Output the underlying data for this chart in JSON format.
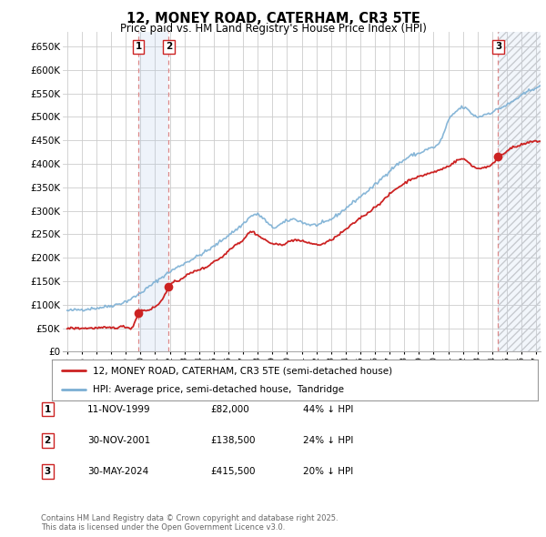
{
  "title": "12, MONEY ROAD, CATERHAM, CR3 5TE",
  "subtitle": "Price paid vs. HM Land Registry's House Price Index (HPI)",
  "ylim": [
    0,
    680000
  ],
  "yticks": [
    0,
    50000,
    100000,
    150000,
    200000,
    250000,
    300000,
    350000,
    400000,
    450000,
    500000,
    550000,
    600000,
    650000
  ],
  "xlim_start": 1994.7,
  "xlim_end": 2027.3,
  "hpi_color": "#7bafd4",
  "price_color": "#cc2222",
  "vline_color": "#dd8888",
  "marker_fill": "#cc2222",
  "transactions": [
    {
      "num": 1,
      "date_dec": 1999.87,
      "price": 82000,
      "label": "1"
    },
    {
      "num": 2,
      "date_dec": 2001.92,
      "price": 138500,
      "label": "2"
    },
    {
      "num": 3,
      "date_dec": 2024.41,
      "price": 415500,
      "label": "3"
    }
  ],
  "legend_line1": "12, MONEY ROAD, CATERHAM, CR3 5TE (semi-detached house)",
  "legend_line2": "HPI: Average price, semi-detached house,  Tandridge",
  "table_rows": [
    {
      "num": "1",
      "date": "11-NOV-1999",
      "price": "£82,000",
      "pct": "44% ↓ HPI"
    },
    {
      "num": "2",
      "date": "30-NOV-2001",
      "price": "£138,500",
      "pct": "24% ↓ HPI"
    },
    {
      "num": "3",
      "date": "30-MAY-2024",
      "price": "£415,500",
      "pct": "20% ↓ HPI"
    }
  ],
  "footnote": "Contains HM Land Registry data © Crown copyright and database right 2025.\nThis data is licensed under the Open Government Licence v3.0.",
  "bg_color": "#ffffff",
  "grid_color": "#cccccc"
}
